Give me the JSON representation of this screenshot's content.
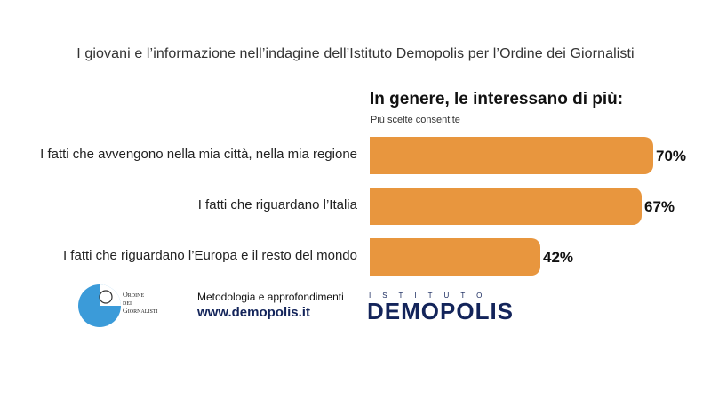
{
  "header": {
    "title": "I giovani e l’informazione nell’indagine dell’Istituto Demopolis per l’Ordine dei Giornalisti"
  },
  "question": {
    "text": "In genere, le interessano di più:",
    "note": "Più scelte consentite"
  },
  "chart_data": {
    "type": "bar",
    "orientation": "horizontal",
    "categories": [
      "I fatti che avvengono nella mia città, nella mia regione",
      "I fatti che riguardano l’Italia",
      "I fatti che riguardano l’Europa e il resto del mondo"
    ],
    "values": [
      70,
      67,
      42
    ],
    "value_labels": [
      "70%",
      "67%",
      "42%"
    ],
    "title": "In genere, le interessano di più:",
    "xlim": [
      0,
      100
    ],
    "grid": false,
    "bar_color": "#e8963e"
  },
  "footer": {
    "odg_logo_text": "Ordine dei Giornalisti",
    "odg_lines": [
      "Ordine",
      "dei",
      "Giornalisti"
    ],
    "method_label": "Metodologia e approfondimenti",
    "url": "www.demopolis.it",
    "demopolis_top": "ISTITUTO",
    "demopolis_word": "DEMOPOLIS"
  },
  "colors": {
    "accent": "#e8963e",
    "brand_navy": "#13245a",
    "odg_blue": "#3b9bd9"
  }
}
